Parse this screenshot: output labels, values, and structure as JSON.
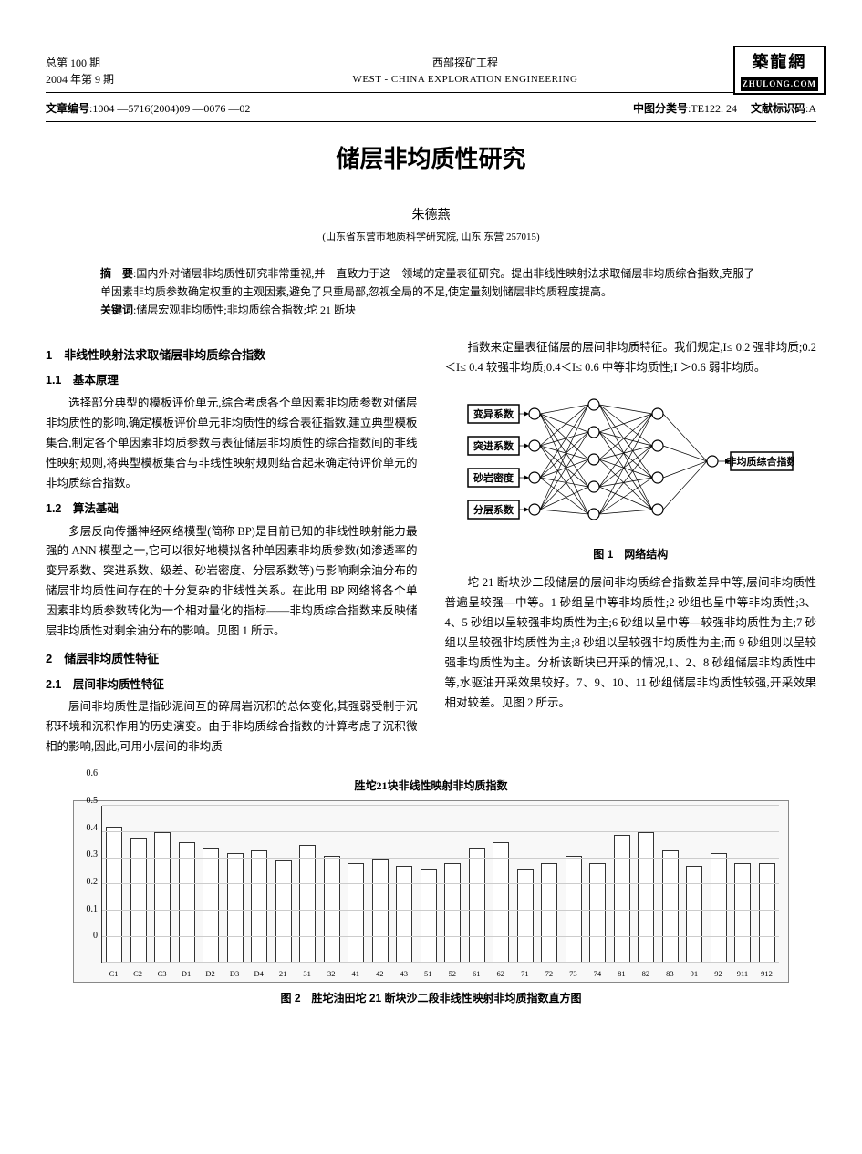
{
  "header": {
    "issue_total": "总第 100 期",
    "issue_year": "2004 年第 9 期",
    "journal_cn": "西部探矿工程",
    "journal_en": "WEST - CHINA  EXPLORATION  ENGINEERING",
    "logo_main": "築龍網",
    "logo_sub": "ZHULONG.COM"
  },
  "meta": {
    "article_id_label": "文章编号",
    "article_id": ":1004 —5716(2004)09 —0076 —02",
    "clc_label": "中图分类号",
    "clc": ":TE122. 24",
    "doc_code_label": "文献标识码",
    "doc_code": ":A"
  },
  "title": "储层非均质性研究",
  "author": "朱德燕",
  "affiliation": "(山东省东营市地质科学研究院, 山东 东营 257015)",
  "abstract_label": "摘　要",
  "abstract": ":国内外对储层非均质性研究非常重视,并一直致力于这一领域的定量表征研究。提出非线性映射法求取储层非均质综合指数,克服了单因素非均质参数确定权重的主观因素,避免了只重局部,忽视全局的不足,使定量刻划储层非均质程度提高。",
  "keywords_label": "关键词",
  "keywords": ":储层宏观非均质性;非均质综合指数;坨 21 断块",
  "s1": "1　非线性映射法求取储层非均质综合指数",
  "s1_1": "1.1　基本原理",
  "p1_1": "选择部分典型的模板评价单元,综合考虑各个单因素非均质参数对储层非均质性的影响,确定模板评价单元非均质性的综合表征指数,建立典型模板集合,制定各个单因素非均质参数与表征储层非均质性的综合指数间的非线性映射规则,将典型模板集合与非线性映射规则结合起来确定待评价单元的非均质综合指数。",
  "s1_2": "1.2　算法基础",
  "p1_2a": "多层反向传播神经网络模型(简称 BP)是目前已知的非线性映射能力最强的 ANN 模型之一,它可以很好地模拟各种单因素非均质参数(如渗透率的变异系数、突进系数、级差、砂岩密度、分层系数等)与影响剩余油分布的储层非均质性间存在的十分复杂的非线性关系。在此用 BP 网络将各个单因素非均质参数转化为一个相对量化的指标——非均质综合指数来反映储层非均质性对剩余油分布的影响。见图 1 所示。",
  "s2": "2　储层非均质性特征",
  "s2_1": "2.1　层间非均质性特征",
  "p2_1": "层间非均质性是指砂泥间互的碎屑岩沉积的总体变化,其强弱受制于沉积环境和沉积作用的历史演变。由于非均质综合指数的计算考虑了沉积微相的影响,因此,可用小层间的非均质",
  "col2_p1": "指数来定量表征储层的层间非均质特征。我们规定,I≤ 0.2 强非均质;0.2＜I≤ 0.4 较强非均质;0.4＜I≤ 0.6 中等非均质性;I ＞0.6 弱非均质。",
  "col2_p2": "坨 21 断块沙二段储层的层间非均质综合指数差异中等,层间非均质性普遍呈较强—中等。1 砂组呈中等非均质性;2 砂组也呈中等非均质性;3、4、5 砂组以呈较强非均质性为主;6 砂组以呈中等—较强非均质性为主;7 砂组以呈较强非均质性为主;8 砂组以呈较强非均质性为主;而 9 砂组则以呈较强非均质性为主。分析该断块已开采的情况,1、2、8 砂组储层非均质性中等,水驱油开采效果较好。7、9、10、11 砂组储层非均质性较强,开采效果相对较差。见图 2 所示。",
  "nn": {
    "inputs": [
      "变异系数",
      "突进系数",
      "砂岩密度",
      "分层系数"
    ],
    "output": "非均质综合指数",
    "caption": "图 1　网络结构",
    "node_fill": "#ffffff",
    "node_stroke": "#000000",
    "line_color": "#000000",
    "box_fill": "#ffffff",
    "box_stroke": "#000000"
  },
  "chart": {
    "title": "胜坨21块非线性映射非均质指数",
    "caption": "图 2　胜坨油田坨 21 断块沙二段非线性映射非均质指数直方图",
    "ylim": [
      0,
      0.6
    ],
    "ytick_step": 0.1,
    "yticks": [
      "0",
      "0.1",
      "0.2",
      "0.3",
      "0.4",
      "0.5",
      "0.6"
    ],
    "bar_fill": "#ffffff",
    "bar_stroke": "#333333",
    "grid_color": "#cccccc",
    "background": "#f8f8f8",
    "categories": [
      "C1",
      "C2",
      "C3",
      "D1",
      "D2",
      "D3",
      "D4",
      "21",
      "31",
      "32",
      "41",
      "42",
      "43",
      "51",
      "52",
      "61",
      "62",
      "71",
      "72",
      "73",
      "74",
      "81",
      "82",
      "83",
      "91",
      "92",
      "911",
      "912"
    ],
    "values": [
      0.52,
      0.48,
      0.5,
      0.46,
      0.44,
      0.42,
      0.43,
      0.39,
      0.45,
      0.41,
      0.38,
      0.4,
      0.37,
      0.36,
      0.38,
      0.44,
      0.46,
      0.36,
      0.38,
      0.41,
      0.38,
      0.49,
      0.5,
      0.43,
      0.37,
      0.42,
      0.38,
      0.38
    ]
  }
}
